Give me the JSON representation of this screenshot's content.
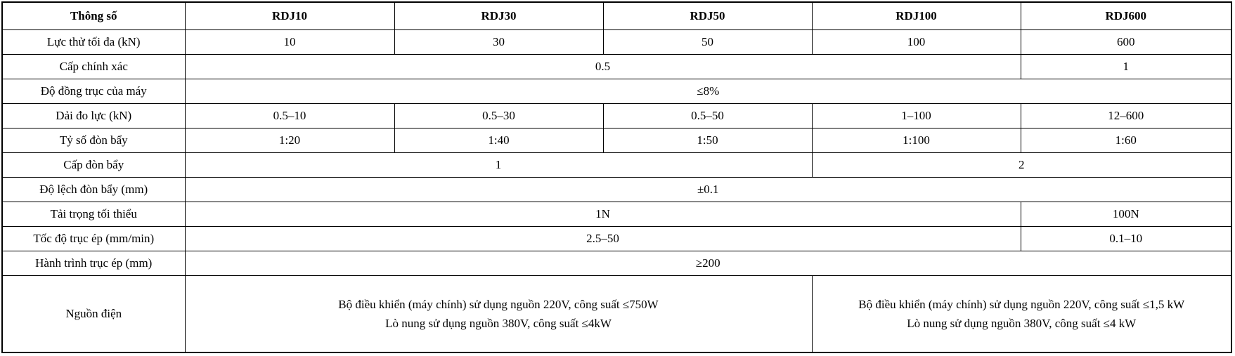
{
  "table": {
    "header": [
      "Thông số",
      "RDJ10",
      "RDJ30",
      "RDJ50",
      "RDJ100",
      "RDJ600"
    ],
    "rows": [
      {
        "label": "Lực thử tối đa (kN)",
        "cells": [
          {
            "text": "10",
            "span": 1
          },
          {
            "text": "30",
            "span": 1
          },
          {
            "text": "50",
            "span": 1
          },
          {
            "text": "100",
            "span": 1
          },
          {
            "text": "600",
            "span": 1
          }
        ]
      },
      {
        "label": "Cấp chính xác",
        "cells": [
          {
            "text": "0.5",
            "span": 4
          },
          {
            "text": "1",
            "span": 1
          }
        ]
      },
      {
        "label": "Độ đồng trục của máy",
        "cells": [
          {
            "text": "≤8%",
            "span": 5
          }
        ]
      },
      {
        "label": "Dải đo lực (kN)",
        "cells": [
          {
            "text": "0.5–10",
            "span": 1
          },
          {
            "text": "0.5–30",
            "span": 1
          },
          {
            "text": "0.5–50",
            "span": 1
          },
          {
            "text": "1–100",
            "span": 1
          },
          {
            "text": "12–600",
            "span": 1
          }
        ]
      },
      {
        "label": "Tỷ số đòn bẩy",
        "cells": [
          {
            "text": "1:20",
            "span": 1
          },
          {
            "text": "1:40",
            "span": 1
          },
          {
            "text": "1:50",
            "span": 1
          },
          {
            "text": "1:100",
            "span": 1
          },
          {
            "text": "1:60",
            "span": 1
          }
        ]
      },
      {
        "label": "Cấp đòn bẩy",
        "cells": [
          {
            "text": "1",
            "span": 3
          },
          {
            "text": "2",
            "span": 2,
            "light_divider": true
          }
        ]
      },
      {
        "label": "Độ lệch đòn bẩy (mm)",
        "cells": [
          {
            "text": "±0.1",
            "span": 5
          }
        ]
      },
      {
        "label": "Tải trọng tối thiểu",
        "cells": [
          {
            "text": "1N",
            "span": 4
          },
          {
            "text": "100N",
            "span": 1
          }
        ]
      },
      {
        "label": "Tốc độ trục ép (mm/min)",
        "cells": [
          {
            "text": "2.5–50",
            "span": 4
          },
          {
            "text": "0.1–10",
            "span": 1
          }
        ]
      },
      {
        "label": "Hành trình trục ép (mm)",
        "cells": [
          {
            "text": "≥200",
            "span": 5
          }
        ]
      },
      {
        "label": "Nguồn điện",
        "tall": true,
        "cells": [
          {
            "lines": [
              "Bộ điều khiển (máy chính) sử dụng nguồn 220V, công suất ≤750W",
              "Lò nung sử dụng nguồn 380V, công suất ≤4kW"
            ],
            "span": 3
          },
          {
            "lines": [
              "Bộ điều khiển (máy chính) sử dụng nguồn 220V, công suất ≤1,5 kW",
              "Lò nung sử dụng nguồn 380V, công suất ≤4 kW"
            ],
            "span": 2
          }
        ]
      }
    ]
  },
  "colors": {
    "border": "#000000",
    "light_divider": "#d9d9d9",
    "text": "#000000",
    "background": "#ffffff"
  }
}
